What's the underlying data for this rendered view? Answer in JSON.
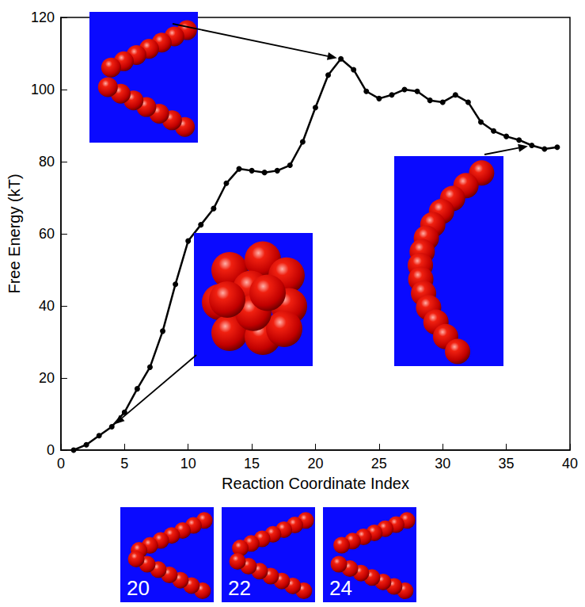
{
  "chart_data": {
    "type": "line",
    "xlabel": "Reaction Coordinate Index",
    "ylabel": "Free Energy (kT)",
    "x": [
      1,
      2,
      3,
      4,
      5,
      6,
      7,
      8,
      9,
      10,
      11,
      12,
      13,
      14,
      15,
      16,
      17,
      18,
      19,
      20,
      21,
      22,
      23,
      24,
      25,
      26,
      27,
      28,
      29,
      30,
      31,
      32,
      33,
      34,
      35,
      36,
      37,
      38,
      39
    ],
    "values": [
      0,
      1.5,
      4,
      6.5,
      10.5,
      17,
      23,
      33,
      46,
      58,
      62.5,
      67,
      74,
      78,
      77.5,
      77,
      77.5,
      79,
      85.5,
      95,
      104,
      108.5,
      105.5,
      99.5,
      97.5,
      98.5,
      100,
      99.5,
      97,
      96.5,
      98.5,
      96.5,
      91,
      88.5,
      87,
      86,
      84.5,
      83.5,
      84
    ],
    "color": "#000000",
    "marker": "circle",
    "xlim": [
      0,
      40
    ],
    "xticks": [
      0,
      5,
      10,
      15,
      20,
      25,
      30,
      35,
      40
    ],
    "ylim": [
      0,
      120
    ],
    "yticks": [
      0,
      20,
      40,
      60,
      80,
      100,
      120
    ],
    "grid": false,
    "insets": [
      {
        "x": 22
      },
      {
        "x": 4
      },
      {
        "x": 37
      }
    ]
  },
  "panels": [
    {
      "label": "20"
    },
    {
      "label": "22"
    },
    {
      "label": "24"
    }
  ]
}
